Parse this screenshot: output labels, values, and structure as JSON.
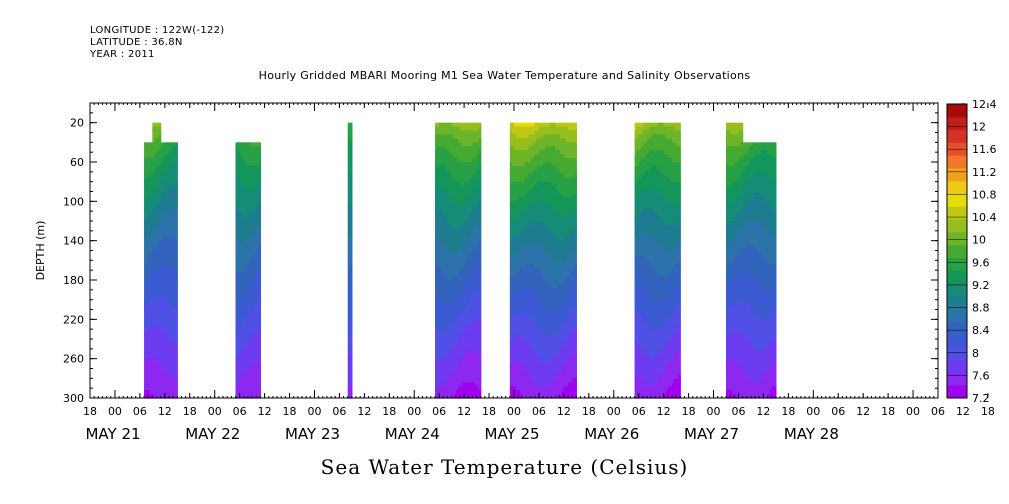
{
  "meta": {
    "longitude": "LONGITUDE : 122W(-122)",
    "latitude": "LATITUDE : 36.8N",
    "year": "YEAR : 2011"
  },
  "chart_data": {
    "type": "heatmap",
    "title": "Hourly Gridded MBARI Mooring M1 Sea Water Temperature and Salinity Observations",
    "bottom_title": "Sea Water Temperature (Celsius)",
    "ylabel": "DEPTH (m)",
    "y_axis": {
      "range": [
        0,
        300
      ],
      "reversed": true,
      "ticks": [
        20,
        60,
        100,
        140,
        180,
        220,
        260,
        300
      ]
    },
    "x_axis": {
      "range_hours": [
        -12,
        192
      ],
      "hour_ticks": [
        "18",
        "00",
        "06",
        "12",
        "18",
        "00",
        "06",
        "12",
        "18",
        "00",
        "06",
        "12",
        "18",
        "00",
        "06",
        "12",
        "18",
        "00",
        "06",
        "12",
        "18",
        "00",
        "06",
        "12",
        "18",
        "00",
        "06",
        "12",
        "18",
        "00",
        "06",
        "12",
        "18",
        "00",
        "06",
        "12",
        "18"
      ],
      "day_labels": [
        {
          "label": "MAY 21",
          "hour": -12
        },
        {
          "label": "MAY 22",
          "hour": 12
        },
        {
          "label": "MAY 23",
          "hour": 36
        },
        {
          "label": "MAY 24",
          "hour": 60
        },
        {
          "label": "MAY 25",
          "hour": 84
        },
        {
          "label": "MAY 26",
          "hour": 108
        },
        {
          "label": "MAY 27",
          "hour": 132
        },
        {
          "label": "MAY 28",
          "hour": 156
        }
      ]
    },
    "colorbar": {
      "levels": [
        "7.2",
        "7.6",
        "8",
        "8.4",
        "8.8",
        "9.2",
        "9.6",
        "10",
        "10.4",
        "10.8",
        "11.2",
        "11.6",
        "12",
        "12.4"
      ],
      "colors": [
        "#a000f0",
        "#8c28f0",
        "#6e3cf0",
        "#5050e6",
        "#3c5ad2",
        "#3264be",
        "#2d73aa",
        "#1e7c91",
        "#148c78",
        "#14965a",
        "#28a046",
        "#46aa32",
        "#6eb428",
        "#96be1e",
        "#bec814",
        "#e6dc0a",
        "#f0c814",
        "#f0a01e",
        "#f07828",
        "#e65028",
        "#d23228",
        "#be1e1e",
        "#aa0a0a"
      ]
    },
    "segments": [
      {
        "start_hour": 1,
        "end_hour": 9,
        "top_depth": 40,
        "notch_depth": 20,
        "notch_hours": [
          3,
          5
        ],
        "surface_temp": 10.0,
        "deep_temp": 7.2
      },
      {
        "start_hour": 23,
        "end_hour": 29,
        "top_depth": 40,
        "surface_temp": 9.8,
        "deep_temp": 7.3
      },
      {
        "start_hour": 50,
        "end_hour": 51,
        "top_depth": 20,
        "surface_temp": 9.6,
        "deep_temp": 7.4
      },
      {
        "start_hour": 71,
        "end_hour": 82,
        "top_depth": 20,
        "surface_temp": 10.2,
        "deep_temp": 7.2
      },
      {
        "start_hour": 89,
        "end_hour": 105,
        "top_depth": 20,
        "surface_temp": 10.5,
        "deep_temp": 7.2
      },
      {
        "start_hour": 119,
        "end_hour": 130,
        "top_depth": 20,
        "surface_temp": 10.3,
        "deep_temp": 7.2
      },
      {
        "start_hour": 141,
        "end_hour": 153,
        "top_depth": 40,
        "notch_depth": 20,
        "notch_hours": [
          141,
          145
        ],
        "surface_temp": 10.1,
        "deep_temp": 7.2
      }
    ]
  }
}
